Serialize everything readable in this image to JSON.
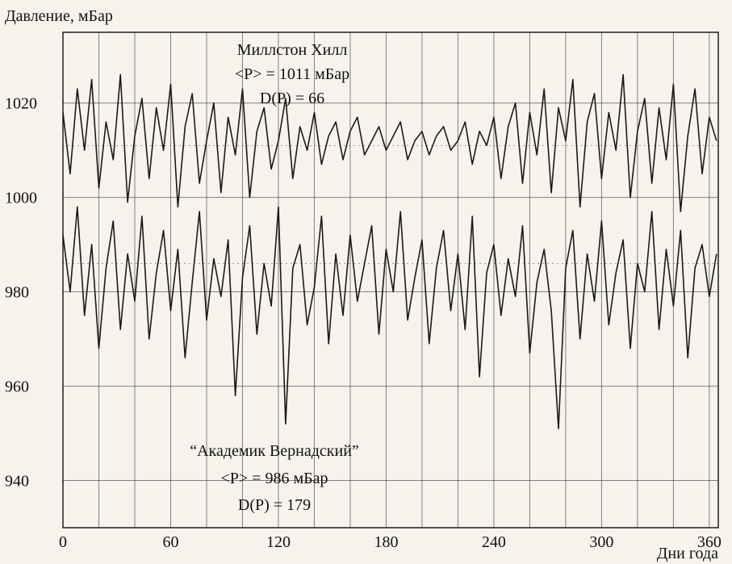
{
  "chart_data": {
    "type": "line",
    "ylabel": "Давление, мБар",
    "xlabel": "Дни года",
    "xlim": [
      0,
      365
    ],
    "ylim": [
      930,
      1035
    ],
    "xticks": [
      0,
      60,
      120,
      180,
      240,
      300,
      360
    ],
    "yticks": [
      940,
      960,
      980,
      1000,
      1020
    ],
    "xgrid": [
      0,
      20,
      40,
      60,
      80,
      100,
      120,
      140,
      160,
      180,
      200,
      220,
      240,
      260,
      280,
      300,
      320,
      340,
      360
    ],
    "ygrid": [
      940,
      960,
      980,
      1000,
      1020
    ],
    "annotations": {
      "top": {
        "station": "Миллстон Хилл",
        "mean": "<P> = 1011 мБар",
        "dispersion": "D(P) = 66"
      },
      "bottom": {
        "station": "“Академик Вернадский”",
        "mean": "<P> = 986 мБар",
        "dispersion": "D(P) = 179"
      }
    },
    "series": [
      {
        "mean": 1011,
        "x": [
          0,
          4,
          8,
          12,
          16,
          20,
          24,
          28,
          32,
          36,
          40,
          44,
          48,
          52,
          56,
          60,
          64,
          68,
          72,
          76,
          80,
          84,
          88,
          92,
          96,
          100,
          104,
          108,
          112,
          116,
          120,
          124,
          128,
          132,
          136,
          140,
          144,
          148,
          152,
          156,
          160,
          164,
          168,
          172,
          176,
          180,
          184,
          188,
          192,
          196,
          200,
          204,
          208,
          212,
          216,
          220,
          224,
          228,
          232,
          236,
          240,
          244,
          248,
          252,
          256,
          260,
          264,
          268,
          272,
          276,
          280,
          284,
          288,
          292,
          296,
          300,
          304,
          308,
          312,
          316,
          320,
          324,
          328,
          332,
          336,
          340,
          344,
          348,
          352,
          356,
          360,
          364
        ],
        "values": [
          1018,
          1005,
          1023,
          1010,
          1025,
          1002,
          1016,
          1008,
          1026,
          999,
          1013,
          1021,
          1004,
          1019,
          1010,
          1024,
          998,
          1015,
          1022,
          1003,
          1012,
          1020,
          1001,
          1017,
          1009,
          1023,
          1000,
          1014,
          1019,
          1006,
          1012,
          1021,
          1004,
          1015,
          1010,
          1018,
          1007,
          1013,
          1016,
          1008,
          1014,
          1017,
          1009,
          1012,
          1015,
          1010,
          1013,
          1016,
          1008,
          1012,
          1014,
          1009,
          1013,
          1015,
          1010,
          1012,
          1016,
          1007,
          1014,
          1011,
          1017,
          1004,
          1015,
          1020,
          1003,
          1018,
          1009,
          1023,
          1001,
          1019,
          1012,
          1025,
          998,
          1016,
          1022,
          1004,
          1018,
          1010,
          1026,
          1000,
          1014,
          1021,
          1003,
          1019,
          1008,
          1024,
          997,
          1013,
          1023,
          1005,
          1017,
          1012
        ]
      },
      {
        "mean": 986,
        "x": [
          0,
          4,
          8,
          12,
          16,
          20,
          24,
          28,
          32,
          36,
          40,
          44,
          48,
          52,
          56,
          60,
          64,
          68,
          72,
          76,
          80,
          84,
          88,
          92,
          96,
          100,
          104,
          108,
          112,
          116,
          120,
          124,
          128,
          132,
          136,
          140,
          144,
          148,
          152,
          156,
          160,
          164,
          168,
          172,
          176,
          180,
          184,
          188,
          192,
          196,
          200,
          204,
          208,
          212,
          216,
          220,
          224,
          228,
          232,
          236,
          240,
          244,
          248,
          252,
          256,
          260,
          264,
          268,
          272,
          276,
          280,
          284,
          288,
          292,
          296,
          300,
          304,
          308,
          312,
          316,
          320,
          324,
          328,
          332,
          336,
          340,
          344,
          348,
          352,
          356,
          360,
          364
        ],
        "values": [
          992,
          980,
          998,
          975,
          990,
          968,
          985,
          995,
          972,
          988,
          978,
          996,
          970,
          984,
          993,
          976,
          989,
          966,
          982,
          997,
          974,
          987,
          979,
          991,
          958,
          983,
          994,
          971,
          986,
          977,
          998,
          952,
          985,
          990,
          973,
          981,
          996,
          969,
          988,
          975,
          992,
          978,
          986,
          994,
          971,
          989,
          980,
          997,
          974,
          983,
          991,
          969,
          985,
          993,
          976,
          988,
          972,
          996,
          962,
          984,
          990,
          975,
          987,
          979,
          994,
          967,
          982,
          989,
          976,
          951,
          985,
          993,
          970,
          988,
          978,
          995,
          973,
          984,
          991,
          968,
          986,
          980,
          997,
          972,
          989,
          977,
          993,
          966,
          985,
          990,
          979,
          988
        ]
      }
    ]
  }
}
